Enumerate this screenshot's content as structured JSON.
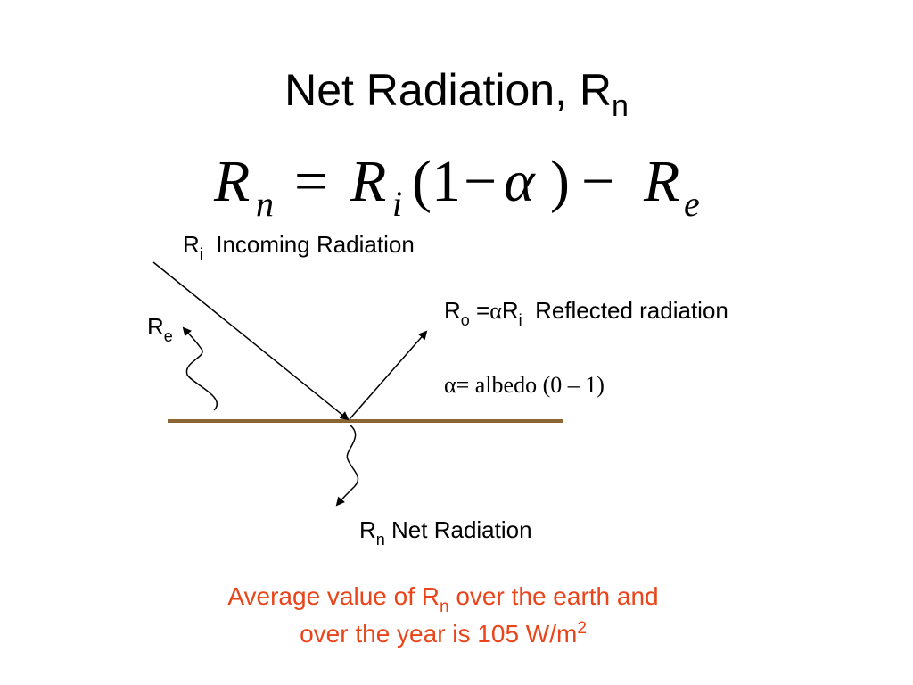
{
  "title": {
    "text": "Net Radiation, R",
    "subscript": "n"
  },
  "equation": {
    "parts": [
      "R",
      "n",
      "=",
      "R",
      "i",
      "(1",
      "−",
      "α",
      ")",
      "−",
      "R",
      "e"
    ]
  },
  "incoming": {
    "symbol": "R",
    "subscript": "i",
    "text": "  Incoming Radiation"
  },
  "reflected": {
    "symbol": "R",
    "subscript": "o",
    "equals": " =",
    "alpha": "α",
    "symbol2": "R",
    "subscript2": "i",
    "text": "  Reflected radiation"
  },
  "albedo": {
    "alpha": "α",
    "text": "= albedo (0 – 1)"
  },
  "emitted": {
    "symbol": "R",
    "subscript": "e"
  },
  "net": {
    "symbol": "R",
    "subscript": "n",
    "text": " Net Radiation"
  },
  "note": {
    "line1": {
      "text": "Average value of R",
      "subscript": "n",
      "rest": " over the earth and"
    },
    "line2": {
      "text": "over the year is 105 W/m",
      "superscript": "2"
    }
  }
}
